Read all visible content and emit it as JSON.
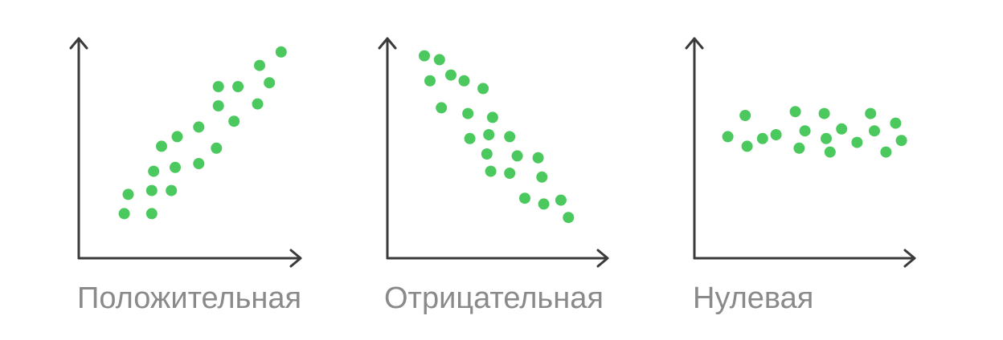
{
  "colors": {
    "point": "#4cc95e",
    "axis": "#3a3a3a",
    "caption": "#8a8a8a"
  },
  "chart_data": [
    {
      "type": "scatter",
      "title": "Положительная",
      "xlim": [
        0,
        10
      ],
      "ylim": [
        0,
        10
      ],
      "grid": false,
      "points": [
        [
          1.5,
          1.4
        ],
        [
          1.7,
          2.4
        ],
        [
          2.9,
          1.4
        ],
        [
          2.9,
          2.6
        ],
        [
          3.0,
          3.6
        ],
        [
          3.4,
          4.9
        ],
        [
          3.9,
          2.6
        ],
        [
          4.1,
          3.8
        ],
        [
          4.2,
          5.4
        ],
        [
          5.3,
          4.0
        ],
        [
          5.3,
          5.9
        ],
        [
          6.2,
          4.8
        ],
        [
          6.3,
          7.0
        ],
        [
          6.3,
          8.0
        ],
        [
          7.1,
          6.2
        ],
        [
          7.3,
          8.0
        ],
        [
          8.3,
          7.1
        ],
        [
          8.4,
          9.1
        ],
        [
          8.9,
          8.2
        ],
        [
          9.5,
          9.8
        ]
      ]
    },
    {
      "type": "scatter",
      "title": "Отрицательная",
      "xlim": [
        0,
        10
      ],
      "ylim": [
        0,
        10
      ],
      "grid": false,
      "points": [
        [
          1.1,
          9.6
        ],
        [
          1.4,
          8.3
        ],
        [
          1.9,
          9.4
        ],
        [
          2.0,
          6.9
        ],
        [
          2.5,
          8.6
        ],
        [
          3.2,
          8.3
        ],
        [
          3.4,
          6.6
        ],
        [
          3.5,
          5.3
        ],
        [
          4.2,
          7.9
        ],
        [
          4.4,
          4.5
        ],
        [
          4.5,
          5.5
        ],
        [
          4.6,
          3.6
        ],
        [
          4.7,
          6.4
        ],
        [
          5.6,
          5.4
        ],
        [
          5.6,
          3.5
        ],
        [
          6.0,
          4.4
        ],
        [
          6.4,
          2.2
        ],
        [
          7.1,
          4.3
        ],
        [
          7.3,
          3.3
        ],
        [
          7.4,
          1.9
        ],
        [
          8.3,
          2.1
        ],
        [
          8.7,
          1.2
        ]
      ]
    },
    {
      "type": "scatter",
      "title": "Нулевая",
      "xlim": [
        0,
        10
      ],
      "ylim": [
        0,
        10
      ],
      "grid": false,
      "points": [
        [
          0.9,
          5.4
        ],
        [
          1.8,
          6.5
        ],
        [
          1.9,
          4.9
        ],
        [
          2.7,
          5.3
        ],
        [
          3.4,
          5.5
        ],
        [
          4.4,
          6.7
        ],
        [
          4.6,
          4.8
        ],
        [
          4.9,
          5.7
        ],
        [
          5.9,
          6.6
        ],
        [
          6.0,
          5.3
        ],
        [
          6.2,
          4.6
        ],
        [
          6.8,
          5.8
        ],
        [
          7.6,
          5.1
        ],
        [
          8.3,
          6.6
        ],
        [
          8.5,
          5.7
        ],
        [
          9.1,
          4.6
        ],
        [
          9.6,
          6.1
        ],
        [
          9.9,
          5.2
        ]
      ]
    }
  ]
}
